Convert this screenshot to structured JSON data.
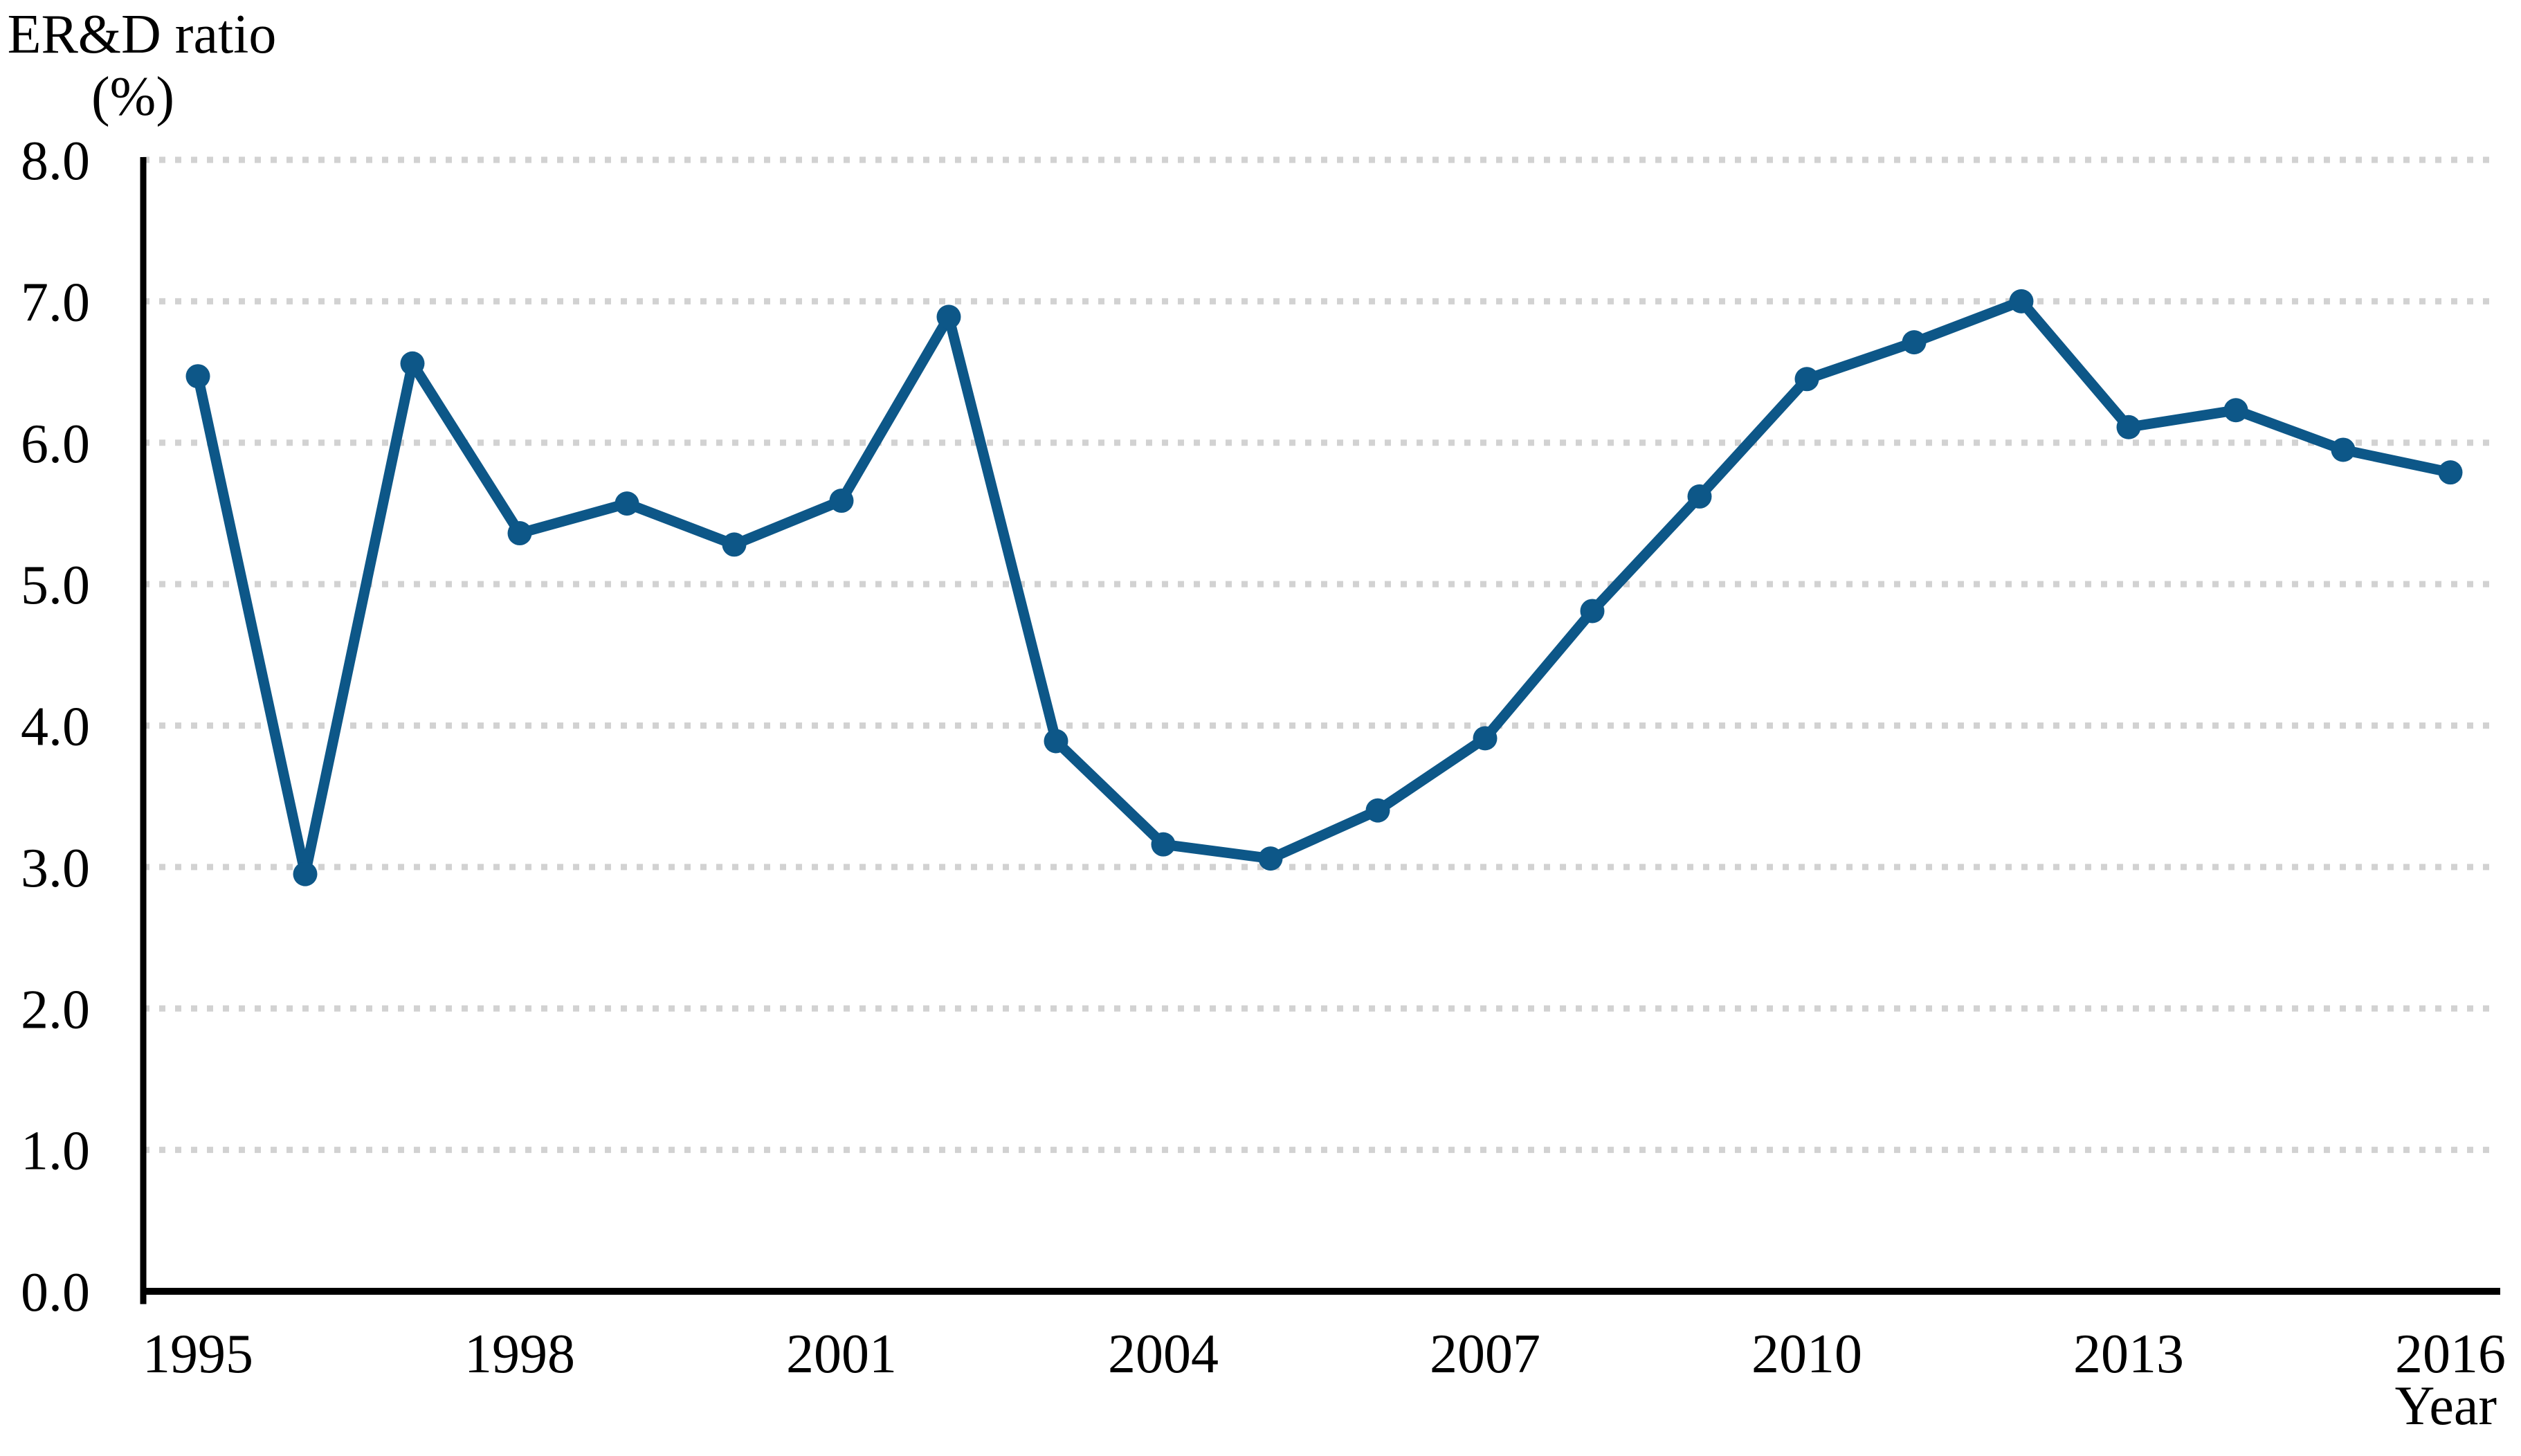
{
  "chart_data": {
    "type": "line",
    "title": "",
    "ylabel": "ER&D ratio (%)",
    "ylabel_line1": "ER&D ratio",
    "ylabel_line2": "(%)",
    "xlabel": "Year",
    "x": [
      1995,
      1996,
      1997,
      1998,
      1999,
      2000,
      2001,
      2002,
      2003,
      2004,
      2005,
      2006,
      2007,
      2008,
      2009,
      2010,
      2011,
      2012,
      2013,
      2014,
      2015,
      2016
    ],
    "series": [
      {
        "name": "ER&D ratio",
        "values": [
          6.47,
          2.95,
          6.56,
          5.36,
          5.57,
          5.28,
          5.59,
          6.89,
          3.89,
          3.16,
          3.06,
          3.4,
          3.91,
          4.81,
          5.62,
          6.45,
          6.71,
          7.0,
          6.11,
          6.23,
          5.95,
          5.79
        ]
      }
    ],
    "ylim": [
      0.0,
      8.0
    ],
    "ytick_step": 1.0,
    "ytick_labels": [
      "0.0",
      "1.0",
      "2.0",
      "3.0",
      "4.0",
      "5.0",
      "6.0",
      "7.0",
      "8.0"
    ],
    "xtick_labels": [
      "1995",
      "1998",
      "2001",
      "2004",
      "2007",
      "2010",
      "2013",
      "2016"
    ],
    "x_start_year": 1995,
    "grid": "horizontal-dotted",
    "legend": "none",
    "line_color": "#0D5788",
    "marker": "circle",
    "grid_color": "#D2D2D2",
    "axis_color": "#000000"
  }
}
